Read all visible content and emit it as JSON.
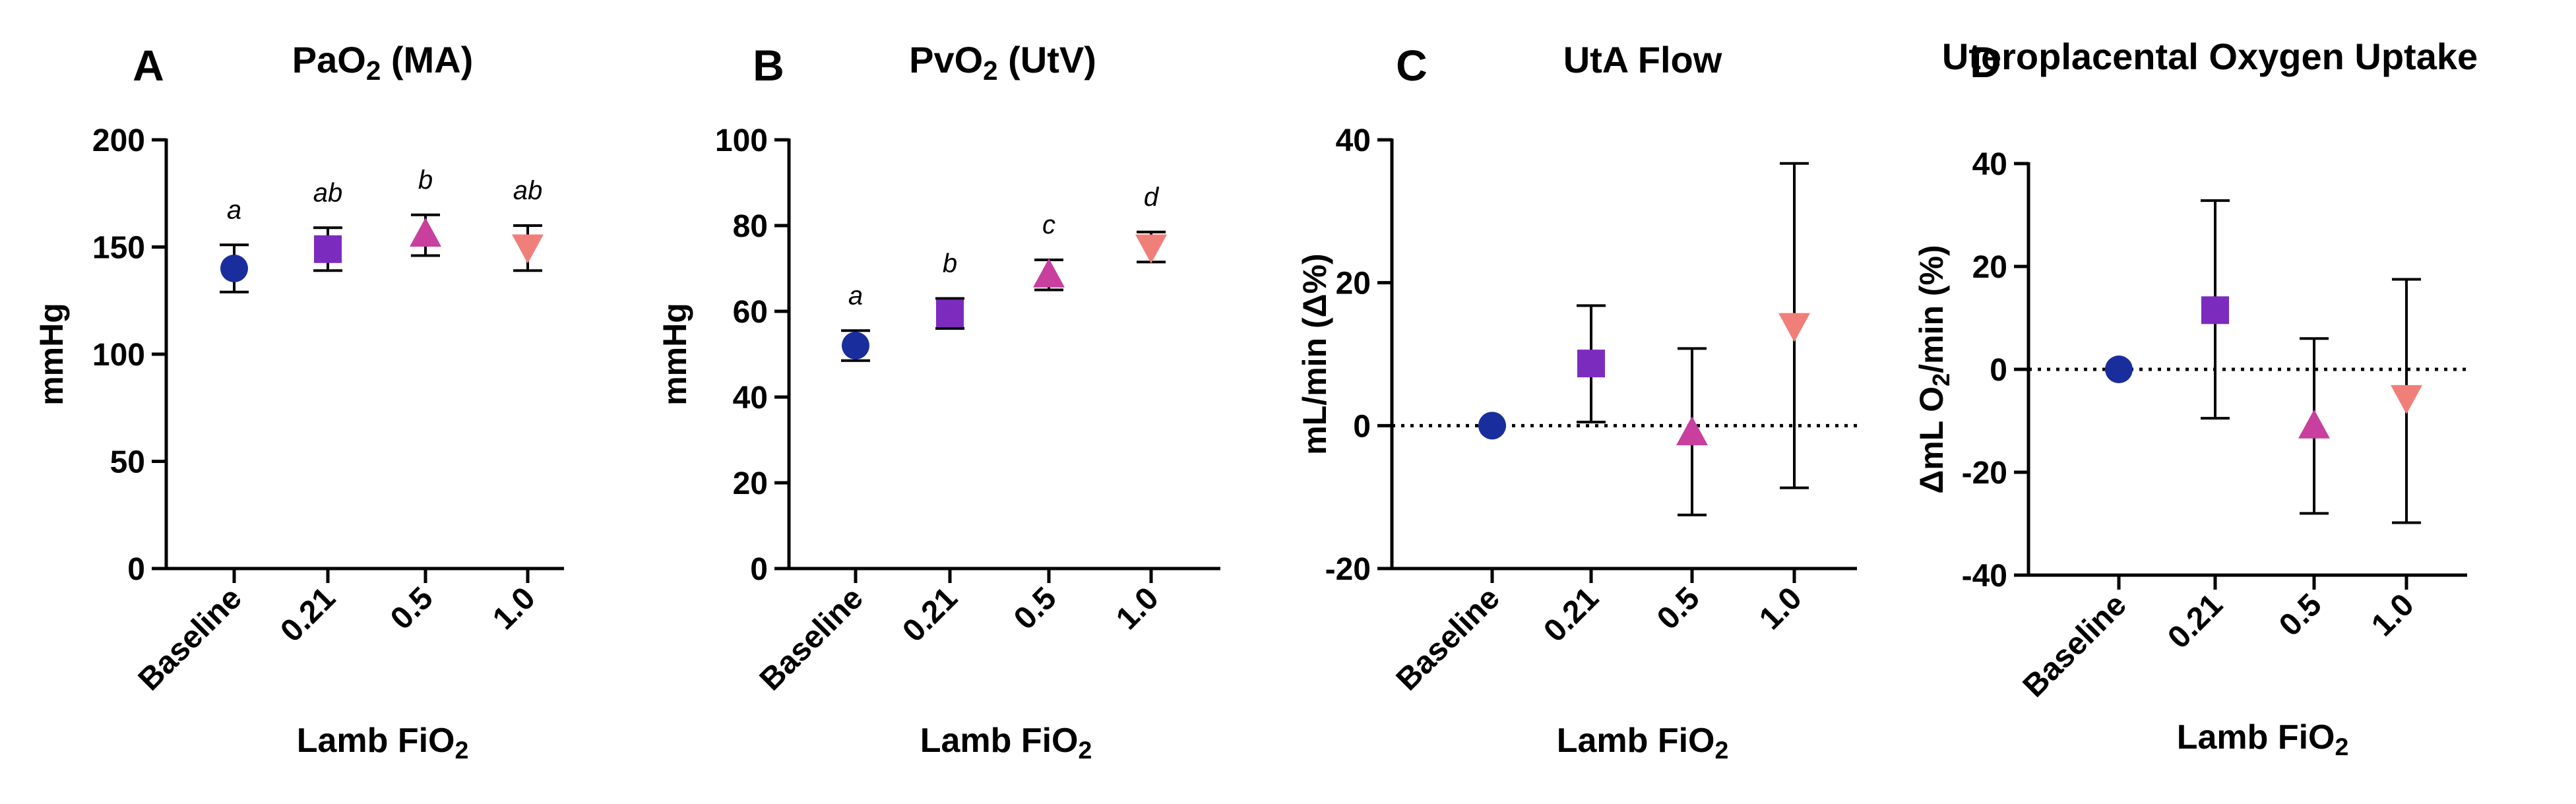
{
  "chart_data": [
    {
      "type": "scatter",
      "panel_label": "A",
      "title": "PaO2 (MA)",
      "title_parts": [
        {
          "t": "PaO"
        },
        {
          "t": "2",
          "sub": true
        },
        {
          "t": " (MA)"
        }
      ],
      "ylabel": "mmHg",
      "ylabel_parts": [
        {
          "t": "mmHg"
        }
      ],
      "xlabel": "Lamb FiO2",
      "xlabel_parts": [
        {
          "t": "Lamb FiO"
        },
        {
          "t": "2",
          "sub": true
        }
      ],
      "categories": [
        "Baseline",
        "0.21",
        "0.5",
        "1.0"
      ],
      "ylim": [
        0,
        200
      ],
      "yticks": [
        0,
        50,
        100,
        150,
        200
      ],
      "zero_line": false,
      "points": [
        {
          "y": 140,
          "lo": 129,
          "hi": 151,
          "marker": "circle",
          "color": "#1a2d9c",
          "letter": "a"
        },
        {
          "y": 149,
          "lo": 139,
          "hi": 159,
          "marker": "square",
          "color": "#7b2cbf",
          "letter": "ab"
        },
        {
          "y": 156,
          "lo": 146,
          "hi": 165,
          "marker": "triangle-up",
          "color": "#c83f9e",
          "letter": "b"
        },
        {
          "y": 150,
          "lo": 139,
          "hi": 160,
          "marker": "triangle-down",
          "color": "#f07f7a",
          "letter": "ab"
        }
      ]
    },
    {
      "type": "scatter",
      "panel_label": "B",
      "title": "PvO2 (UtV)",
      "title_parts": [
        {
          "t": "PvO"
        },
        {
          "t": "2",
          "sub": true
        },
        {
          "t": " (UtV)"
        }
      ],
      "ylabel": "mmHg",
      "ylabel_parts": [
        {
          "t": "mmHg"
        }
      ],
      "xlabel": "Lamb FiO2",
      "xlabel_parts": [
        {
          "t": "Lamb FiO"
        },
        {
          "t": "2",
          "sub": true
        }
      ],
      "categories": [
        "Baseline",
        "0.21",
        "0.5",
        "1.0"
      ],
      "ylim": [
        0,
        100
      ],
      "yticks": [
        0,
        20,
        40,
        60,
        80,
        100
      ],
      "zero_line": false,
      "points": [
        {
          "y": 52,
          "lo": 48.5,
          "hi": 55.5,
          "marker": "circle",
          "color": "#1a2d9c",
          "letter": "a"
        },
        {
          "y": 59.5,
          "lo": 56,
          "hi": 63,
          "marker": "square",
          "color": "#7b2cbf",
          "letter": "b"
        },
        {
          "y": 68.5,
          "lo": 65,
          "hi": 72,
          "marker": "triangle-up",
          "color": "#c83f9e",
          "letter": "c"
        },
        {
          "y": 75,
          "lo": 71.5,
          "hi": 78.5,
          "marker": "triangle-down",
          "color": "#f07f7a",
          "letter": "d"
        }
      ]
    },
    {
      "type": "scatter",
      "panel_label": "C",
      "title": "UtA Flow",
      "title_parts": [
        {
          "t": "UtA Flow"
        }
      ],
      "ylabel": "mL/min (Δ%)",
      "ylabel_parts": [
        {
          "t": "mL/min (Δ%)"
        }
      ],
      "xlabel": "Lamb FiO2",
      "xlabel_parts": [
        {
          "t": "Lamb FiO"
        },
        {
          "t": "2",
          "sub": true
        }
      ],
      "categories": [
        "Baseline",
        "0.21",
        "0.5",
        "1.0"
      ],
      "ylim": [
        -20,
        40
      ],
      "yticks": [
        -20,
        0,
        20,
        40
      ],
      "zero_line": true,
      "points": [
        {
          "y": 0,
          "marker": "circle",
          "color": "#1a2d9c"
        },
        {
          "y": 8.7,
          "lo": 0.5,
          "hi": 16.8,
          "marker": "square",
          "color": "#7b2cbf"
        },
        {
          "y": -1,
          "lo": -12.5,
          "hi": 10.8,
          "marker": "triangle-up",
          "color": "#c83f9e"
        },
        {
          "y": 14,
          "lo": -8.7,
          "hi": 36.7,
          "marker": "triangle-down",
          "color": "#f07f7a"
        }
      ]
    },
    {
      "type": "scatter",
      "panel_label": "D",
      "title": "Uteroplacental Oxygen Uptake",
      "title_parts": [
        {
          "t": "Uteroplacental Oxygen Uptake"
        }
      ],
      "ylabel": "ΔmL O2/min (%)",
      "ylabel_parts": [
        {
          "t": "ΔmL O"
        },
        {
          "t": "2",
          "sub": true
        },
        {
          "t": "/min (%)"
        }
      ],
      "xlabel": "Lamb FiO2",
      "xlabel_parts": [
        {
          "t": "Lamb FiO"
        },
        {
          "t": "2",
          "sub": true
        }
      ],
      "categories": [
        "Baseline",
        "0.21",
        "0.5",
        "1.0"
      ],
      "ylim": [
        -40,
        40
      ],
      "yticks": [
        -40,
        -20,
        0,
        20,
        40
      ],
      "zero_line": true,
      "points": [
        {
          "y": 0,
          "marker": "circle",
          "color": "#1a2d9c"
        },
        {
          "y": 11.5,
          "lo": -9.5,
          "hi": 32.8,
          "marker": "square",
          "color": "#7b2cbf"
        },
        {
          "y": -11,
          "lo": -28,
          "hi": 6,
          "marker": "triangle-up",
          "color": "#c83f9e"
        },
        {
          "y": -5.5,
          "lo": -29.8,
          "hi": 17.5,
          "marker": "triangle-down",
          "color": "#f07f7a"
        }
      ]
    }
  ]
}
